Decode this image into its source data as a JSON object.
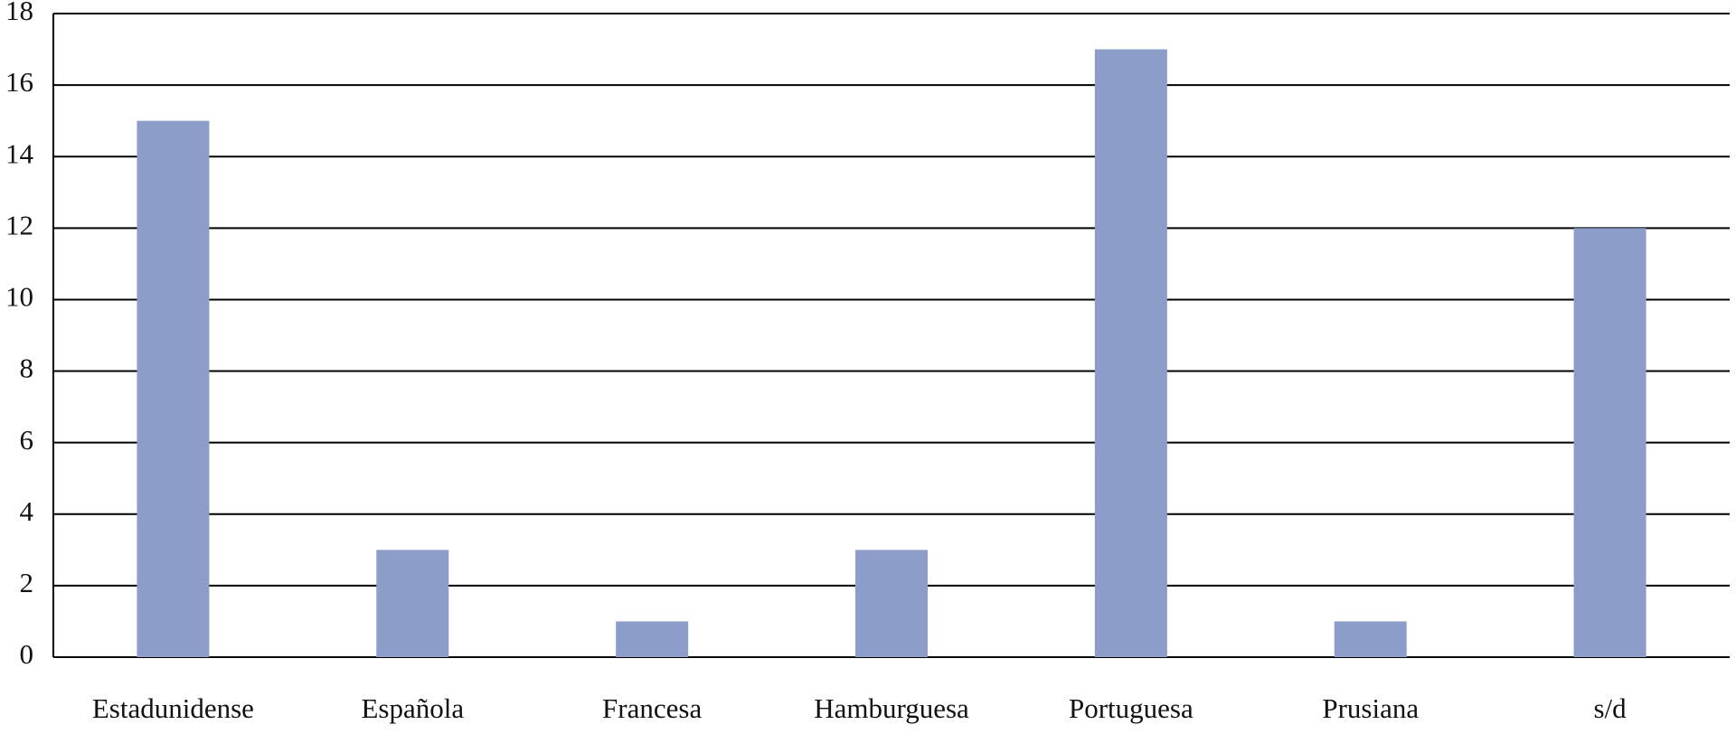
{
  "chart_data": {
    "type": "bar",
    "categories": [
      "Estadunidense",
      "Española",
      "Francesa",
      "Hamburguesa",
      "Portuguesa",
      "Prusiana",
      "s/d"
    ],
    "values": [
      15,
      3,
      1,
      3,
      17,
      1,
      12
    ],
    "color": "#8c9dc9",
    "ylim": [
      0,
      18
    ],
    "yticks": [
      0,
      2,
      4,
      6,
      8,
      10,
      12,
      14,
      16,
      18
    ],
    "grid": true
  }
}
